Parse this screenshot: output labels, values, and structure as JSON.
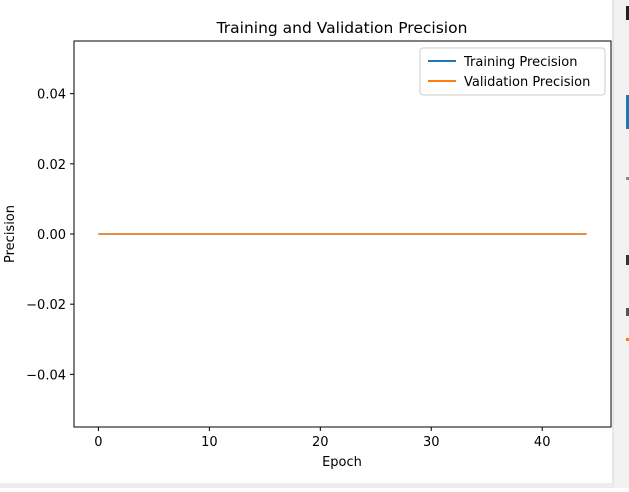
{
  "chart_data": {
    "type": "line",
    "title": "Training and Validation Precision",
    "xlabel": "Epoch",
    "ylabel": "Precision",
    "xlim": [
      -2.2,
      46.2
    ],
    "ylim": [
      -0.055,
      0.055
    ],
    "xticks": [
      0,
      10,
      20,
      30,
      40
    ],
    "yticks": [
      -0.04,
      -0.02,
      0.0,
      0.02,
      0.04
    ],
    "xtick_labels": [
      "0",
      "10",
      "20",
      "30",
      "40"
    ],
    "ytick_labels": [
      "−0.04",
      "−0.02",
      "0.00",
      "0.02",
      "0.04"
    ],
    "grid": false,
    "legend_position": "top-right",
    "x": [
      0,
      44
    ],
    "series": [
      {
        "name": "Training Precision",
        "color": "#1f77b4",
        "values": [
          0.0,
          0.0
        ]
      },
      {
        "name": "Validation Precision",
        "color": "#ff7f0e",
        "values": [
          0.0,
          0.0
        ]
      }
    ]
  },
  "edge_colors": {
    "accent_blue": "#1f77b4",
    "accent_orange": "#ff7f0e"
  }
}
